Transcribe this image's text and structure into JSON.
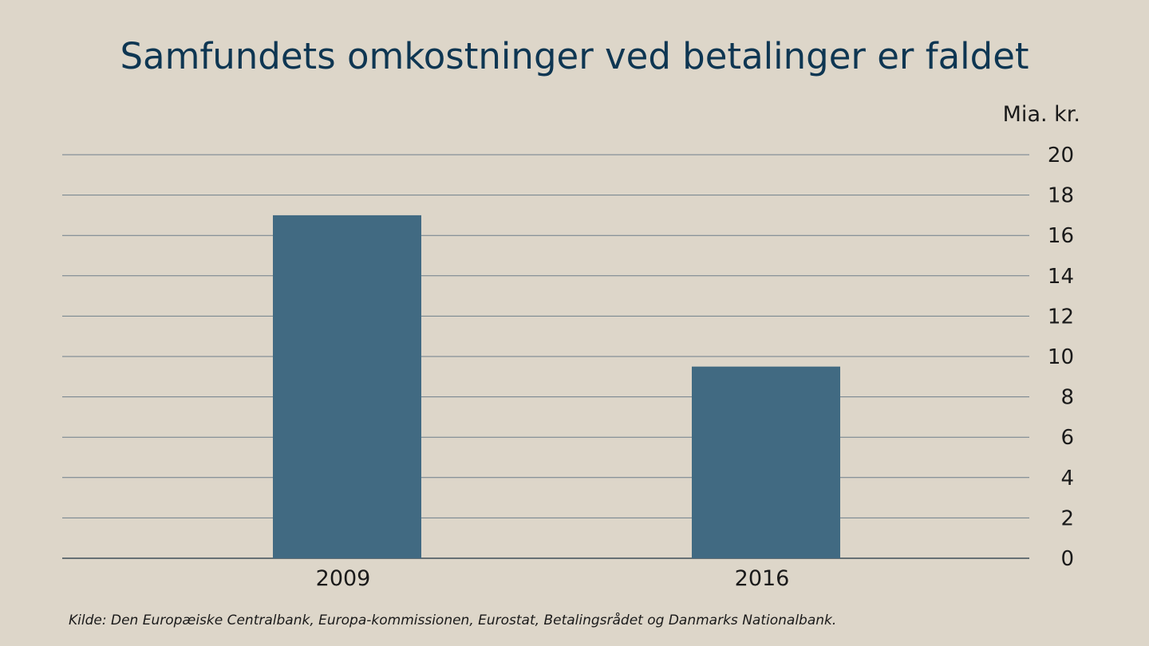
{
  "chart_data": {
    "type": "bar",
    "title": "Samfundets omkostninger ved betalinger er faldet",
    "ylabel": "Mia. kr.",
    "xlabel": "",
    "categories": [
      "2009",
      "2016"
    ],
    "values": [
      17.0,
      9.5
    ],
    "ylim": [
      0,
      20
    ],
    "yticks": [
      "0",
      "2",
      "4",
      "6",
      "8",
      "10",
      "12",
      "14",
      "16",
      "18",
      "20"
    ],
    "grid": true,
    "y_axis_side": "right",
    "bar_color": "#416a82",
    "grid_color": "#6f7f8a",
    "text_color": "#1a1a1a",
    "title_color": "#0e3652"
  },
  "source": "Kilde: Den Europæiske Centralbank, Europa-kommissionen, Eurostat, Betalingsrådet og Danmarks Nationalbank."
}
